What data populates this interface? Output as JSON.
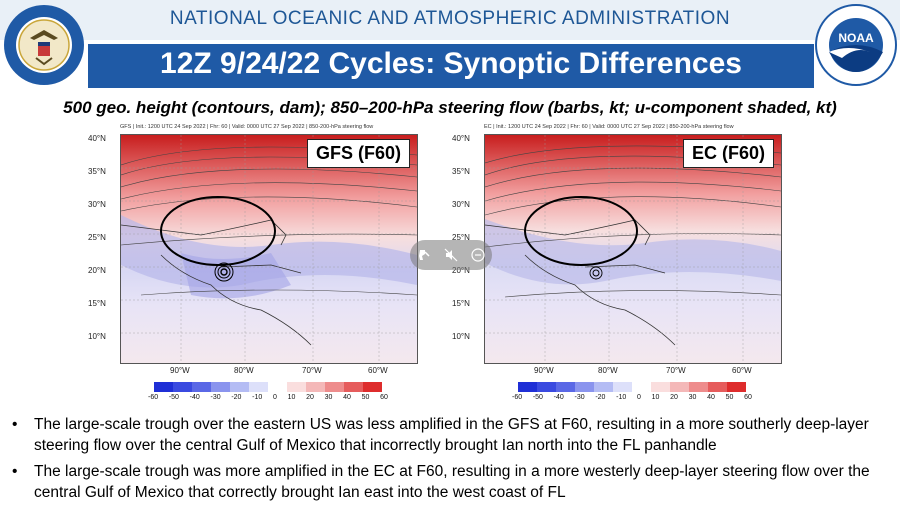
{
  "header": {
    "agency": "NATIONAL OCEANIC AND ATMOSPHERIC ADMINISTRATION",
    "title": "12Z 9/24/22 Cycles: Synoptic Differences",
    "seal_text": "DEPARTMENT OF COMMERCE · UNITED STATES OF AMERICA",
    "logo_text": "NOAA",
    "logo_ring_text": "NATIONAL OCEANIC AND ATMOSPHERIC ADMINISTRATION · U.S. DEPARTMENT OF COMMERCE"
  },
  "subtitle": "500 geo. height (contours, dam); 850–200-hPa steering flow (barbs, kt; u-component shaded, kt)",
  "panels": [
    {
      "label": "GFS (F60)",
      "meta": "GFS | Init.: 1200 UTC 24 Sep 2022 | Fhr: 60 | Valid: 0000 UTC 27 Sep 2022 | 850-200-hPa steering flow"
    },
    {
      "label": "EC (F60)",
      "meta": "EC | Init.: 1200 UTC 24 Sep 2022 | Fhr: 60 | Valid: 0000 UTC 27 Sep 2022 | 850-200-hPa steering flow"
    }
  ],
  "axes": {
    "lat_labels": [
      "40°N",
      "35°N",
      "30°N",
      "25°N",
      "20°N",
      "15°N",
      "10°N"
    ],
    "lon_labels": [
      "90°W",
      "80°W",
      "70°W",
      "60°W"
    ],
    "colorbar_ticks": [
      "-60",
      "-50",
      "-40",
      "-30",
      "-20",
      "-10",
      "0",
      "10",
      "20",
      "30",
      "40",
      "50",
      "60"
    ]
  },
  "colors": {
    "accent": "#1f5aa6",
    "agency_text": "#1e5796",
    "negative": "#2b3bd0",
    "positive": "#d8282a"
  },
  "bullets": [
    "The large-scale trough over the eastern US was less amplified in the GFS at F60, resulting in a more southerly deep-layer steering flow over the central Gulf of Mexico that incorrectly brought Ian north into the FL panhandle",
    "The large-scale trough was more amplified in the EC at F60, resulting in a more westerly deep-layer steering flow over the central Gulf of Mexico that correctly brought Ian east into the west coast of FL"
  ],
  "media_overlay": {
    "icons": [
      "pip-icon",
      "mute-icon",
      "close-icon"
    ]
  }
}
